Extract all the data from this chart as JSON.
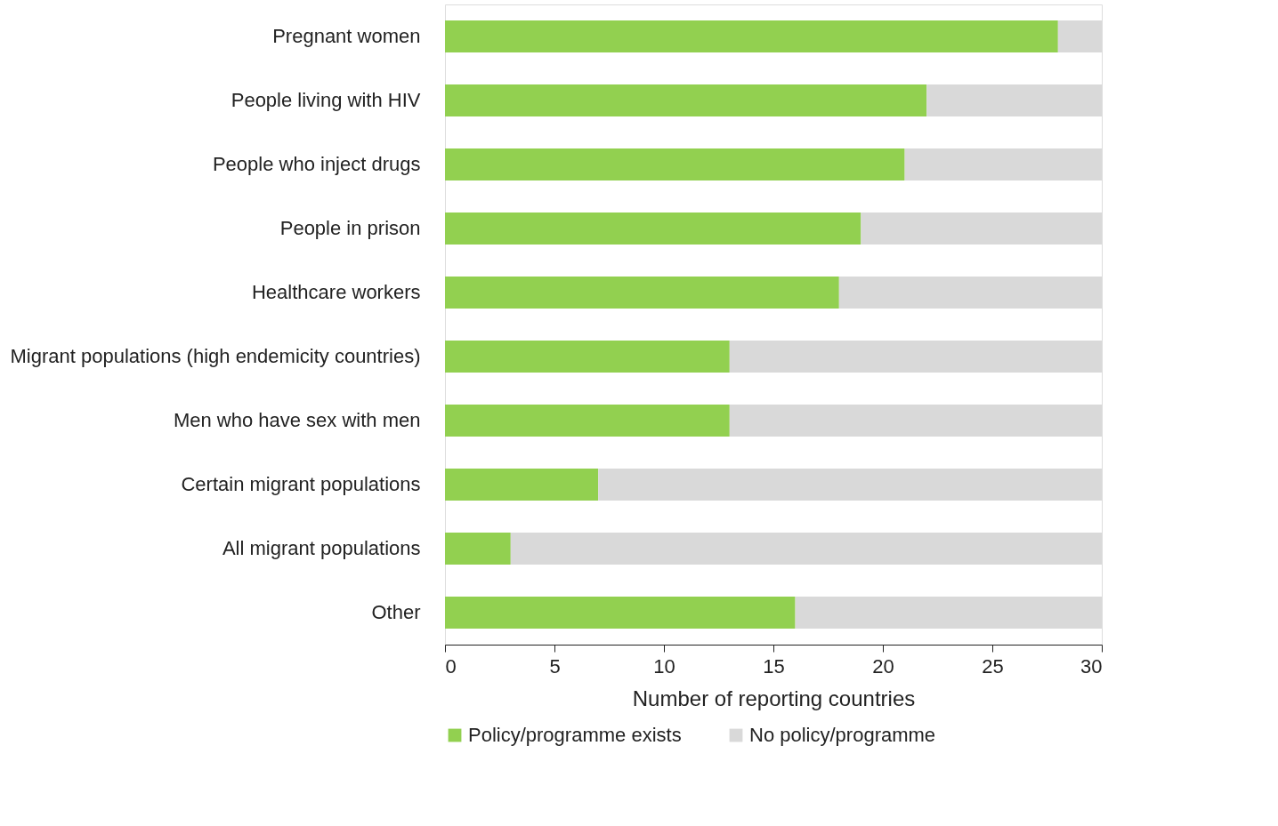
{
  "chart_data": {
    "type": "bar",
    "orientation": "horizontal",
    "stacked": true,
    "categories": [
      "Pregnant women",
      "People living with HIV",
      "People who inject drugs",
      "People in prison",
      "Healthcare workers",
      "Migrant populations (high endemicity countries)",
      "Men who have sex with men",
      "Certain migrant populations",
      "All migrant populations",
      "Other"
    ],
    "series": [
      {
        "name": "Policy/programme exists",
        "color": "#92d050",
        "values": [
          28,
          22,
          21,
          19,
          18,
          13,
          13,
          7,
          3,
          16
        ]
      },
      {
        "name": "No policy/programme",
        "color": "#d9d9d9",
        "values": [
          2,
          8,
          9,
          11,
          12,
          17,
          17,
          23,
          27,
          14
        ]
      }
    ],
    "xlabel": "Number of reporting countries",
    "xlim": [
      0,
      30
    ],
    "xticks": [
      0,
      5,
      10,
      15,
      20,
      25,
      30
    ],
    "grid": false,
    "legend": "bottom"
  }
}
